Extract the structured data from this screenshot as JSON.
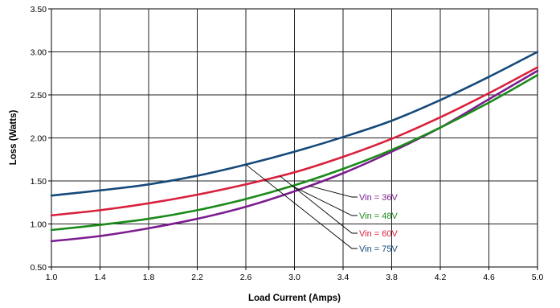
{
  "chart_data": {
    "type": "line",
    "title": "",
    "xlabel": "Load Current (Amps)",
    "ylabel": "Loss (Watts)",
    "xlim": [
      1.0,
      5.0
    ],
    "ylim": [
      0.5,
      3.5
    ],
    "x_ticks": [
      "1.0",
      "1.4",
      "1.8",
      "2.2",
      "2.6",
      "3.0",
      "3.4",
      "3.8",
      "4.2",
      "4.6",
      "5.0"
    ],
    "y_ticks": [
      "0.50",
      "1.00",
      "1.50",
      "2.00",
      "2.50",
      "3.00",
      "3.50"
    ],
    "grid": true,
    "x": [
      1.0,
      1.4,
      1.8,
      2.2,
      2.6,
      3.0,
      3.4,
      3.8,
      4.2,
      4.6,
      5.0
    ],
    "series": [
      {
        "name": "Vin = 36V",
        "color": "#7b1d8f",
        "values": [
          0.8,
          0.86,
          0.95,
          1.06,
          1.2,
          1.38,
          1.59,
          1.84,
          2.12,
          2.45,
          2.78
        ]
      },
      {
        "name": "Vin = 48V",
        "color": "#1a8a1a",
        "values": [
          0.93,
          0.99,
          1.06,
          1.16,
          1.29,
          1.45,
          1.64,
          1.86,
          2.12,
          2.41,
          2.73
        ]
      },
      {
        "name": "Vin = 60V",
        "color": "#d9213c",
        "values": [
          1.1,
          1.16,
          1.24,
          1.34,
          1.46,
          1.6,
          1.78,
          1.99,
          2.24,
          2.52,
          2.82
        ]
      },
      {
        "name": "Vin = 75V",
        "color": "#164a7a",
        "values": [
          1.33,
          1.39,
          1.46,
          1.56,
          1.69,
          1.84,
          2.01,
          2.2,
          2.44,
          2.71,
          3.0
        ]
      }
    ]
  }
}
